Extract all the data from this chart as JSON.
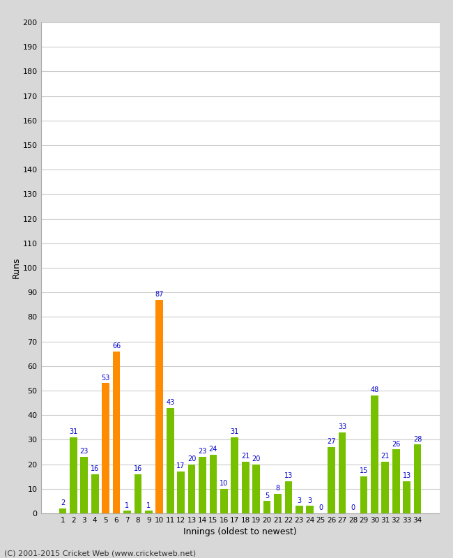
{
  "innings": [
    1,
    2,
    3,
    4,
    5,
    6,
    7,
    8,
    9,
    10,
    11,
    12,
    13,
    14,
    15,
    16,
    17,
    18,
    19,
    20,
    21,
    22,
    23,
    24,
    25,
    26,
    27,
    28,
    29,
    30,
    31,
    32,
    33,
    34
  ],
  "values": [
    2,
    31,
    23,
    16,
    53,
    66,
    1,
    16,
    1,
    87,
    43,
    17,
    20,
    23,
    24,
    10,
    31,
    21,
    20,
    5,
    8,
    13,
    3,
    3,
    0,
    27,
    33,
    0,
    15,
    48,
    21,
    26,
    13,
    28
  ],
  "bar_colors": [
    "#76c000",
    "#76c000",
    "#76c000",
    "#76c000",
    "#ff8c00",
    "#ff8c00",
    "#76c000",
    "#76c000",
    "#76c000",
    "#ff8c00",
    "#76c000",
    "#76c000",
    "#76c000",
    "#76c000",
    "#76c000",
    "#76c000",
    "#76c000",
    "#76c000",
    "#76c000",
    "#76c000",
    "#76c000",
    "#76c000",
    "#76c000",
    "#76c000",
    "#76c000",
    "#76c000",
    "#76c000",
    "#76c000",
    "#76c000",
    "#76c000",
    "#76c000",
    "#76c000",
    "#76c000",
    "#76c000"
  ],
  "xlabel": "Innings (oldest to newest)",
  "ylabel": "Runs",
  "ylim": [
    0,
    200
  ],
  "yticks": [
    0,
    10,
    20,
    30,
    40,
    50,
    60,
    70,
    80,
    90,
    100,
    110,
    120,
    130,
    140,
    150,
    160,
    170,
    180,
    190,
    200
  ],
  "label_color": "#0000cc",
  "bg_color": "#ffffff",
  "outer_bg": "#d8d8d8",
  "grid_color": "#cccccc",
  "footer": "(C) 2001-2015 Cricket Web (www.cricketweb.net)"
}
